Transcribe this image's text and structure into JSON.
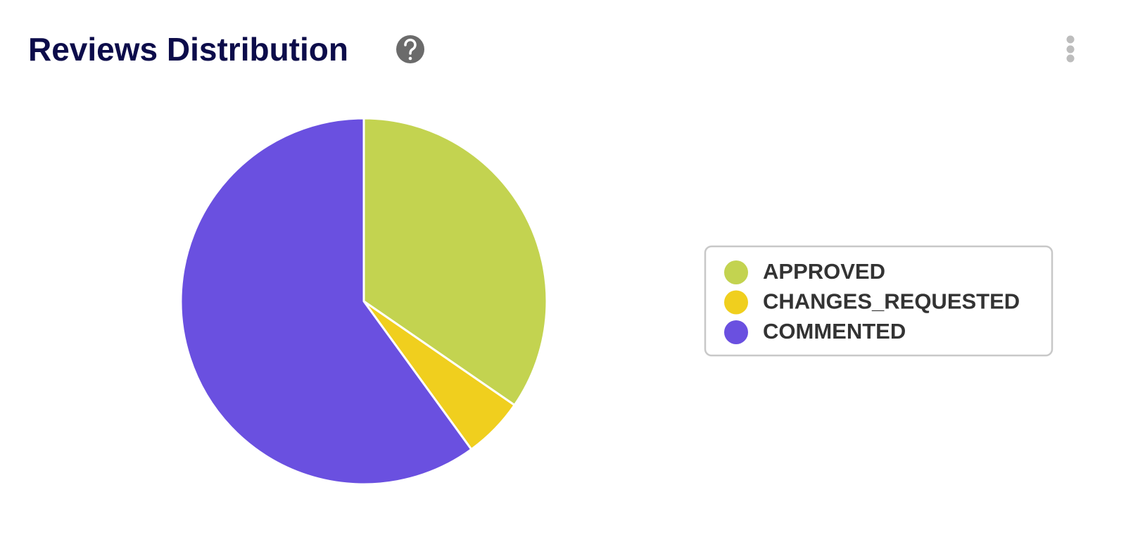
{
  "chart_data": {
    "type": "pie",
    "title": "Reviews Distribution",
    "categories": [
      "APPROVED",
      "CHANGES_REQUESTED",
      "COMMENTED"
    ],
    "values": [
      34.6,
      5.4,
      60
    ],
    "colors": [
      "#c3d350",
      "#f0cf1e",
      "#6a50e0"
    ],
    "legend": "right"
  }
}
